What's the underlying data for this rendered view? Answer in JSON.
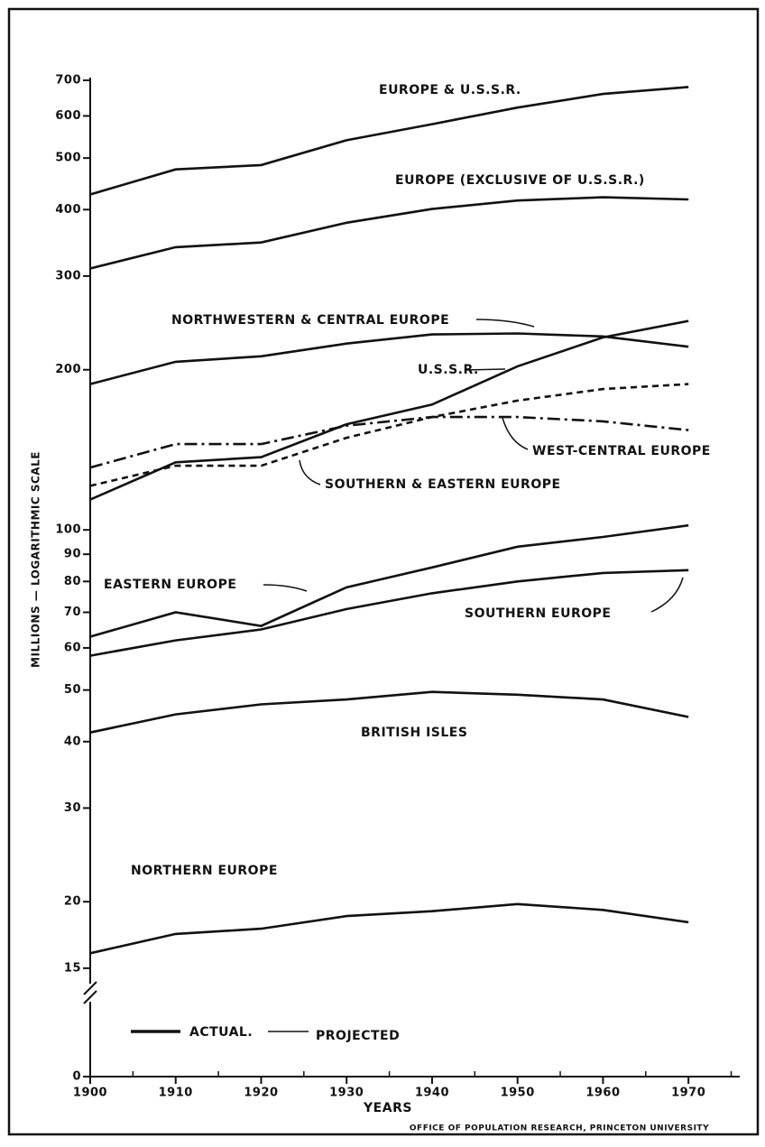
{
  "chart_data": {
    "type": "line",
    "ylabel": "MILLIONS — LOGARITHMIC SCALE",
    "xlabel": "YEARS",
    "source": "OFFICE OF POPULATION RESEARCH, PRINCETON UNIVERSITY",
    "log_y": true,
    "color": "#111111",
    "x": [
      1900,
      1910,
      1920,
      1930,
      1940,
      1950,
      1960,
      1970
    ],
    "series": [
      {
        "name": "EUROPE & U.S.S.R.",
        "style": "solid",
        "values": [
          427,
          476,
          485,
          540,
          579,
          622,
          660,
          680
        ]
      },
      {
        "name": "EUROPE (EXCLUSIVE OF U.S.S.R.)",
        "style": "solid",
        "values": [
          310,
          340,
          347,
          378,
          401,
          416,
          422,
          418
        ]
      },
      {
        "name": "NORTHWESTERN & CENTRAL EUROPE",
        "style": "solid",
        "values": [
          188,
          207,
          212,
          224,
          233,
          234,
          231,
          221
        ]
      },
      {
        "name": "U.S.S.R.",
        "style": "solid",
        "values": [
          114,
          134,
          137,
          158,
          172,
          203,
          230,
          247
        ]
      },
      {
        "name": "WEST-CENTRAL EUROPE",
        "style": "dashdot",
        "values": [
          131,
          145,
          145,
          157,
          163,
          163,
          160,
          154
        ]
      },
      {
        "name": "SOUTHERN & EASTERN EUROPE",
        "style": "dashed",
        "values": [
          121,
          132,
          132,
          149,
          163,
          175,
          184,
          188
        ]
      },
      {
        "name": "EASTERN EUROPE",
        "style": "solid",
        "values": [
          63,
          70,
          66,
          78,
          85,
          93,
          97,
          102
        ]
      },
      {
        "name": "SOUTHERN EUROPE",
        "style": "solid",
        "values": [
          58,
          62,
          65,
          71,
          76,
          80,
          83,
          84
        ]
      },
      {
        "name": "BRITISH ISLES",
        "style": "solid",
        "values": [
          41.6,
          45,
          47,
          48,
          49.6,
          49,
          48,
          44.5
        ]
      },
      {
        "name": "NORTHERN EUROPE",
        "style": "solid",
        "values": [
          16,
          17.4,
          17.8,
          18.8,
          19.2,
          19.8,
          19.3,
          18.3
        ]
      }
    ],
    "legend": [
      "ACTUAL.",
      "PROJECTED"
    ],
    "xlim": [
      1900,
      1976
    ],
    "xticks": [
      1900,
      1910,
      1920,
      1930,
      1940,
      1950,
      1960,
      1970
    ],
    "xminorticks": [
      1905,
      1915,
      1925,
      1935,
      1945,
      1955,
      1965,
      1975
    ],
    "ylim": [
      12,
      700
    ],
    "yticks": [
      15,
      20,
      30,
      40,
      50,
      60,
      70,
      80,
      90,
      100,
      200,
      300,
      400,
      500,
      600,
      700
    ],
    "axis_break_tick": 0
  }
}
